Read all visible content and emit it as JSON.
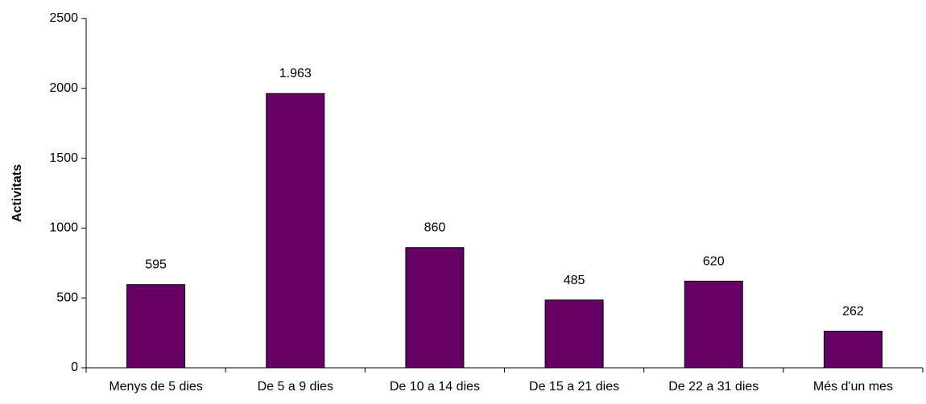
{
  "chart_data": {
    "type": "bar",
    "title": "",
    "xlabel": "",
    "ylabel": "Activitats",
    "categories": [
      "Menys de 5 dies",
      "De 5 a 9 dies",
      "De 10 a 14 dies",
      "De 15 a 21 dies",
      "De 22 a 31 dies",
      "Més d'un mes"
    ],
    "values": [
      595,
      1963,
      860,
      485,
      620,
      262
    ],
    "data_labels": [
      "595",
      "1.963",
      "860",
      "485",
      "620",
      "262"
    ],
    "ylim": [
      0,
      2500
    ],
    "yticks": [
      0,
      500,
      1000,
      1500,
      2000,
      2500
    ],
    "ytick_labels": [
      "0",
      "500",
      "1000",
      "1500",
      "2000",
      "2500"
    ],
    "grid": false,
    "legend": "none",
    "bar_color": "#660066",
    "bar_edge_color": "#000000"
  }
}
